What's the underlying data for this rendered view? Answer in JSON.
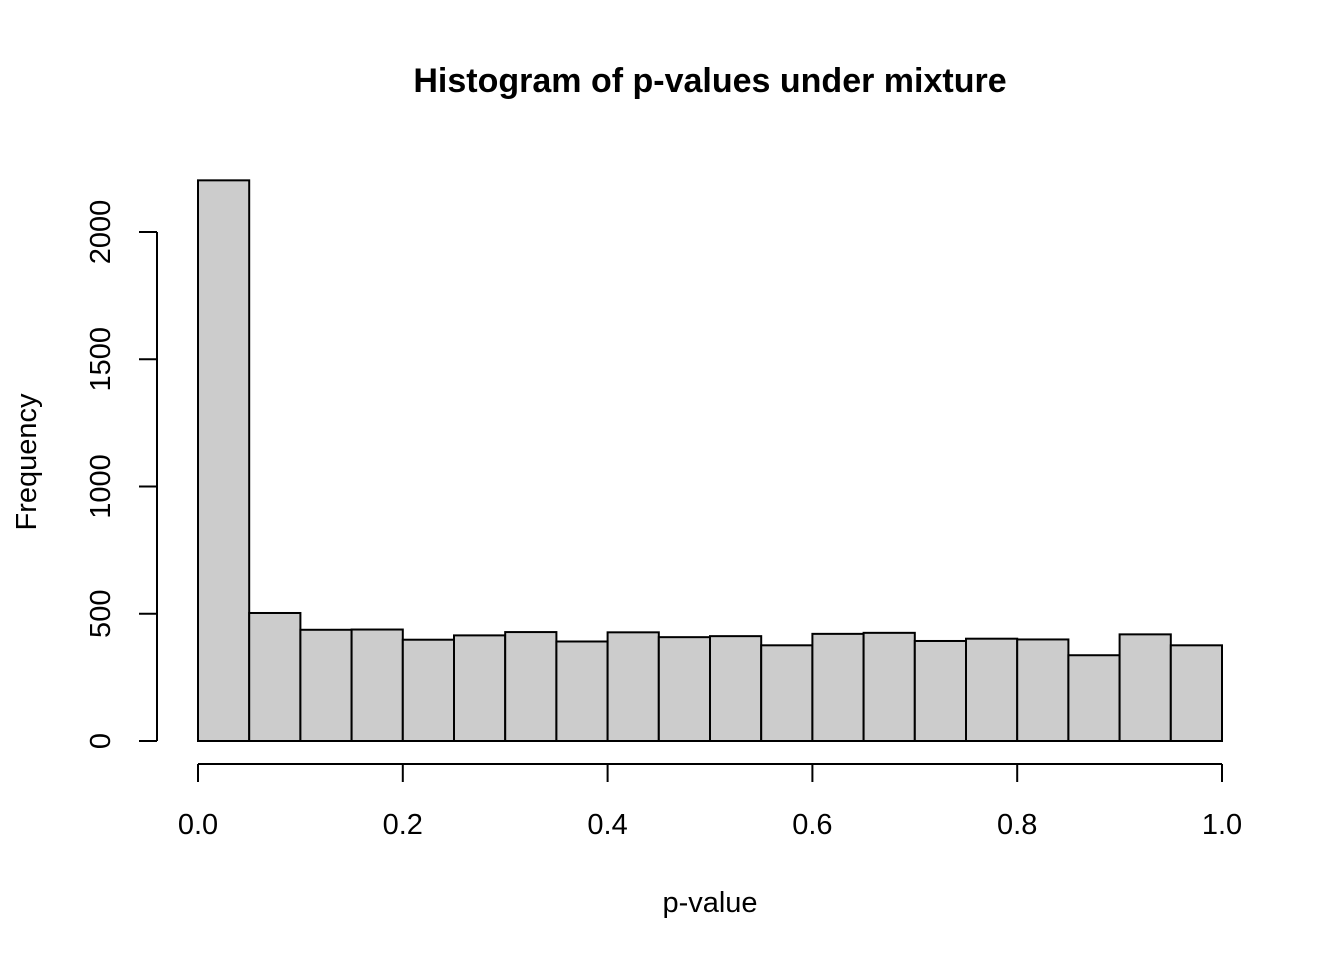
{
  "chart_data": {
    "type": "bar",
    "title": "Histogram of p-values under mixture",
    "xlabel": "p-value",
    "ylabel": "Frequency",
    "xlim": [
      0,
      1
    ],
    "ylim": [
      0,
      2200
    ],
    "bin_width": 0.05,
    "bins": [
      0.0,
      0.05,
      0.1,
      0.15,
      0.2,
      0.25,
      0.3,
      0.35,
      0.4,
      0.45,
      0.5,
      0.55,
      0.6,
      0.65,
      0.7,
      0.75,
      0.8,
      0.85,
      0.9,
      0.95
    ],
    "values": [
      2203,
      503,
      437,
      438,
      398,
      415,
      428,
      391,
      427,
      408,
      412,
      376,
      421,
      425,
      393,
      402,
      399,
      337,
      419,
      376
    ],
    "x_ticks": [
      "0.0",
      "0.2",
      "0.4",
      "0.6",
      "0.8",
      "1.0"
    ],
    "x_tick_values": [
      0,
      0.2,
      0.4,
      0.6,
      0.8,
      1.0
    ],
    "y_ticks": [
      "0",
      "500",
      "1000",
      "1500",
      "2000"
    ],
    "y_tick_values": [
      0,
      500,
      1000,
      1500,
      2000
    ],
    "bar_color": "#cccccc",
    "grid": false
  }
}
